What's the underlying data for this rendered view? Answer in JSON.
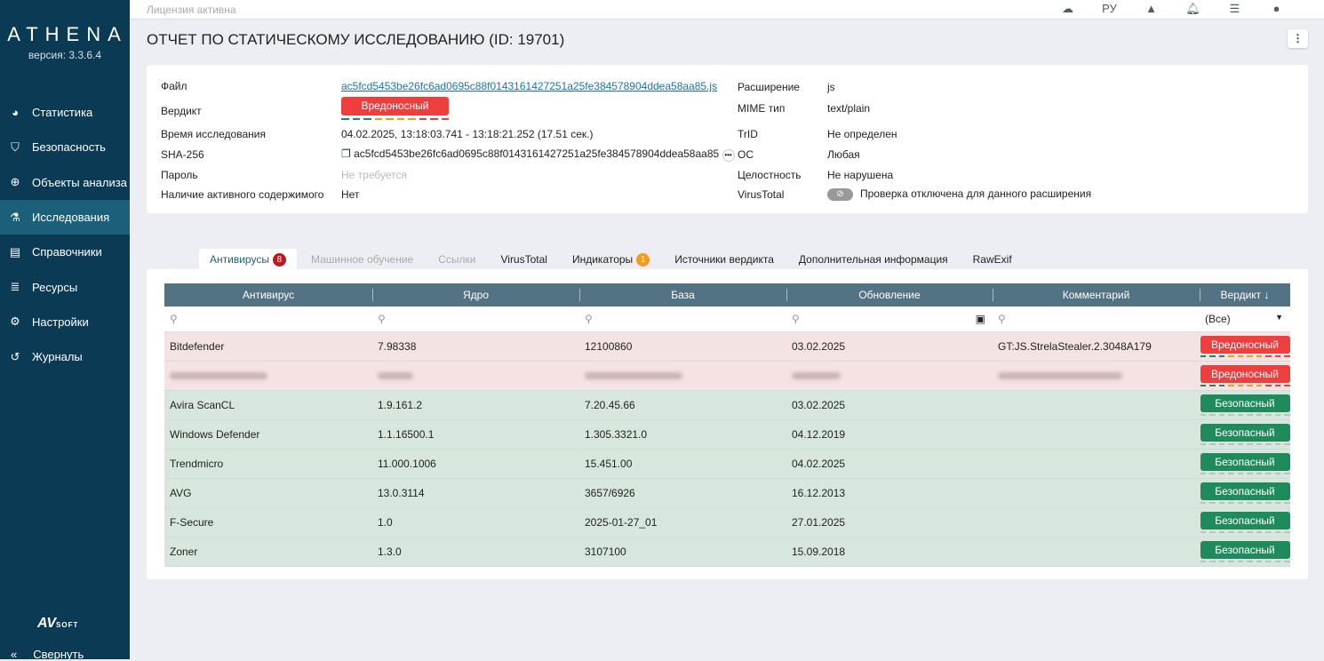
{
  "app": {
    "logo": "ATHENA",
    "version": "версия: 3.3.6.4",
    "vendor_logo": "AVSOFT",
    "collapse": "Свернуть"
  },
  "sidebar": {
    "items": [
      {
        "label": "Статистика",
        "icon": "pie-chart-icon"
      },
      {
        "label": "Безопасность",
        "icon": "shield-icon"
      },
      {
        "label": "Объекты анализа",
        "icon": "crosshair-icon"
      },
      {
        "label": "Исследования",
        "icon": "flask-icon",
        "active": true
      },
      {
        "label": "Справочники",
        "icon": "book-icon"
      },
      {
        "label": "Ресурсы",
        "icon": "server-icon"
      },
      {
        "label": "Настройки",
        "icon": "gear-icon"
      },
      {
        "label": "Журналы",
        "icon": "history-icon"
      }
    ]
  },
  "topbar": {
    "license": "Лицензия активна",
    "lang": "РУ"
  },
  "page": {
    "title": "ОТЧЕТ ПО СТАТИЧЕСКОМУ ИССЛЕДОВАНИЮ (ID: 19701)"
  },
  "info": {
    "file_label": "Файл",
    "file": "ac5fcd5453be26fc6ad0695c88f0143161427251a25fe384578904ddea58aa85.js",
    "verdict_label": "Вердикт",
    "verdict": "Вредоносный",
    "time_label": "Время исследования",
    "time": "04.02.2025, 13:18:03.741 - 13:18:21.252 (17.51 сек.)",
    "sha_label": "SHA-256",
    "sha": "ac5fcd5453be26fc6ad0695c88f0143161427251a25fe384578904ddea58aa85",
    "password_label": "Пароль",
    "password": "Не требуется",
    "active_label": "Наличие активного содержимого",
    "active": "Нет",
    "ext_label": "Расширение",
    "ext": "js",
    "mime_label": "MIME тип",
    "mime": "text/plain",
    "trid_label": "TrID",
    "trid": "Не определен",
    "os_label": "ОС",
    "os": "Любая",
    "integrity_label": "Целостность",
    "integrity": "Не нарушена",
    "vt_label": "VirusTotal",
    "vt": "Проверка отключена для данного расширения"
  },
  "tabs": [
    {
      "label": "Антивирусы",
      "count": "8",
      "active": true
    },
    {
      "label": "Машинное обучение",
      "disabled": true
    },
    {
      "label": "Ссылки",
      "disabled": true
    },
    {
      "label": "VirusTotal"
    },
    {
      "label": "Индикаторы",
      "count": "1"
    },
    {
      "label": "Источники вердикта"
    },
    {
      "label": "Дополнительная информация"
    },
    {
      "label": "RawExif"
    }
  ],
  "table": {
    "columns": [
      "Антивирус",
      "Ядро",
      "База",
      "Обновление",
      "Комментарий",
      "Вердикт ↓"
    ],
    "verdict_filter": "(Все)",
    "rows": [
      {
        "name": "Bitdefender",
        "engine": "7.98338",
        "base": "12100860",
        "updated": "03.02.2025",
        "comment": "GT:JS.StrelaStealer.2.3048A179",
        "verdict": "Вредоносный",
        "type": "mal"
      },
      {
        "name": "",
        "engine": "",
        "base": "",
        "updated": "",
        "comment": "",
        "verdict": "Вредоносный",
        "type": "mal",
        "blurred": true
      },
      {
        "name": "Avira ScanCL",
        "engine": "1.9.161.2",
        "base": "7.20.45.66",
        "updated": "03.02.2025",
        "comment": "",
        "verdict": "Безопасный",
        "type": "safe"
      },
      {
        "name": "Windows Defender",
        "engine": "1.1.16500.1",
        "base": "1.305.3321.0",
        "updated": "04.12.2019",
        "comment": "",
        "verdict": "Безопасный",
        "type": "safe"
      },
      {
        "name": "Trendmicro",
        "engine": "11.000.1006",
        "base": "15.451.00",
        "updated": "04.02.2025",
        "comment": "",
        "verdict": "Безопасный",
        "type": "safe"
      },
      {
        "name": "AVG",
        "engine": "13.0.3114",
        "base": "3657/6926",
        "updated": "16.12.2013",
        "comment": "",
        "verdict": "Безопасный",
        "type": "safe"
      },
      {
        "name": "F-Secure",
        "engine": "1.0",
        "base": "2025-01-27_01",
        "updated": "27.01.2025",
        "comment": "",
        "verdict": "Безопасный",
        "type": "safe"
      },
      {
        "name": "Zoner",
        "engine": "1.3.0",
        "base": "3107100",
        "updated": "15.09.2018",
        "comment": "",
        "verdict": "Безопасный",
        "type": "safe"
      }
    ]
  },
  "colors": {
    "sidebar": "#0b3a55",
    "malicious": "#ef3e3e",
    "safe": "#1f8a5c",
    "header": "#537283"
  }
}
